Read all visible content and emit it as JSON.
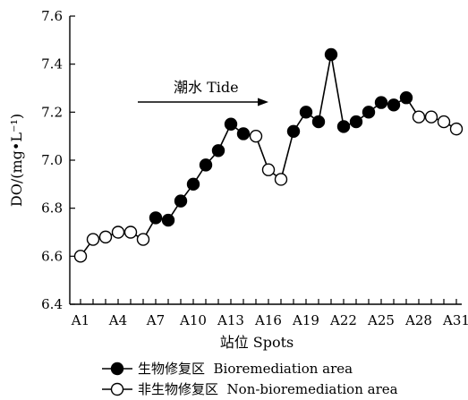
{
  "chart_data": {
    "type": "line",
    "ylabel": "DO/(mg•L⁻¹)",
    "xlabel": "站位 Spots",
    "ylim": [
      6.4,
      7.6
    ],
    "yticks": [
      6.4,
      6.6,
      6.8,
      7.0,
      7.2,
      7.4,
      7.6
    ],
    "ytick_labels": [
      "6.4",
      "6.6",
      "6.8",
      "7.0",
      "7.2",
      "7.4",
      "7.6"
    ],
    "x": [
      "A1",
      "A2",
      "A3",
      "A4",
      "A5",
      "A6",
      "A7",
      "A8",
      "A9",
      "A10",
      "A11",
      "A12",
      "A13",
      "A14",
      "A15",
      "A16",
      "A17",
      "A18",
      "A19",
      "A20",
      "A21",
      "A22",
      "A23",
      "A24",
      "A25",
      "A26",
      "A27",
      "A28",
      "A29",
      "A30",
      "A31"
    ],
    "xtick_labels": [
      "A1",
      "A4",
      "A7",
      "A10",
      "A13",
      "A16",
      "A19",
      "A22",
      "A25",
      "A28",
      "A31"
    ],
    "values": [
      6.6,
      6.67,
      6.68,
      6.7,
      6.7,
      6.67,
      6.76,
      6.75,
      6.83,
      6.9,
      6.98,
      7.04,
      7.15,
      7.11,
      7.1,
      6.96,
      6.92,
      7.12,
      7.2,
      7.16,
      7.44,
      7.14,
      7.16,
      7.2,
      7.24,
      7.23,
      7.26,
      7.18,
      7.18,
      7.16,
      7.13
    ],
    "marker_type": [
      "open",
      "open",
      "open",
      "open",
      "open",
      "open",
      "filled",
      "filled",
      "filled",
      "filled",
      "filled",
      "filled",
      "filled",
      "filled",
      "open",
      "open",
      "open",
      "filled",
      "filled",
      "filled",
      "filled",
      "filled",
      "filled",
      "filled",
      "filled",
      "filled",
      "filled",
      "open",
      "open",
      "open",
      "open"
    ],
    "legend": [
      {
        "label": "生物修复区  Bioremediation area",
        "marker": "filled"
      },
      {
        "label": "非生物修复区  Non-bioremediation area",
        "marker": "open"
      }
    ],
    "annotation": "潮水  Tide",
    "grid": false
  }
}
